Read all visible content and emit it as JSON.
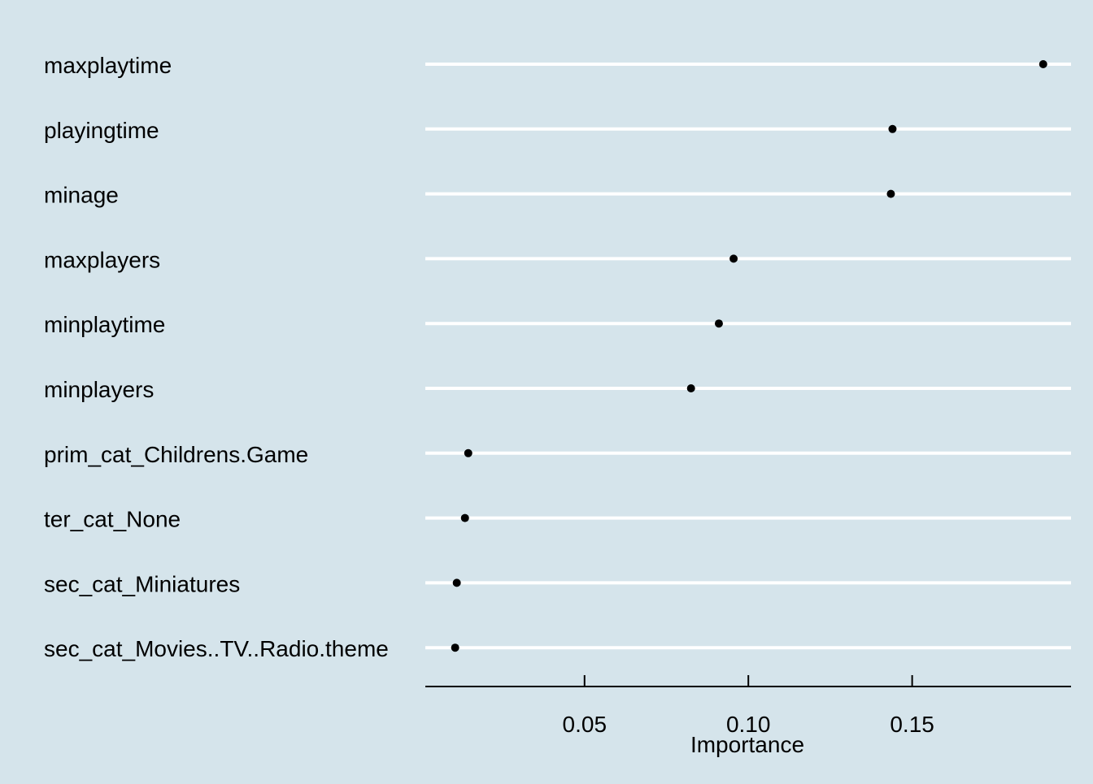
{
  "chart_data": {
    "type": "scatter",
    "style": "dot-plot",
    "title": "",
    "xlabel": "Importance",
    "ylabel": "",
    "xlim": [
      0.0014,
      0.1985
    ],
    "xticks": [
      0.05,
      0.1,
      0.15
    ],
    "xtick_labels": [
      "0.05",
      "0.10",
      "0.15"
    ],
    "grid": "horizontal",
    "categories": [
      "maxplaytime",
      "playingtime",
      "minage",
      "maxplayers",
      "minplaytime",
      "minplayers",
      "prim_cat_Childrens.Game",
      "ter_cat_None",
      "sec_cat_Miniatures",
      "sec_cat_Movies..TV..Radio.theme"
    ],
    "values": [
      0.19,
      0.144,
      0.1435,
      0.0955,
      0.091,
      0.0825,
      0.0145,
      0.0135,
      0.011,
      0.0105
    ],
    "colors": {
      "background": "#d5e4eb",
      "gridline": "#ffffff",
      "point": "#000000",
      "axis": "#000000"
    }
  }
}
